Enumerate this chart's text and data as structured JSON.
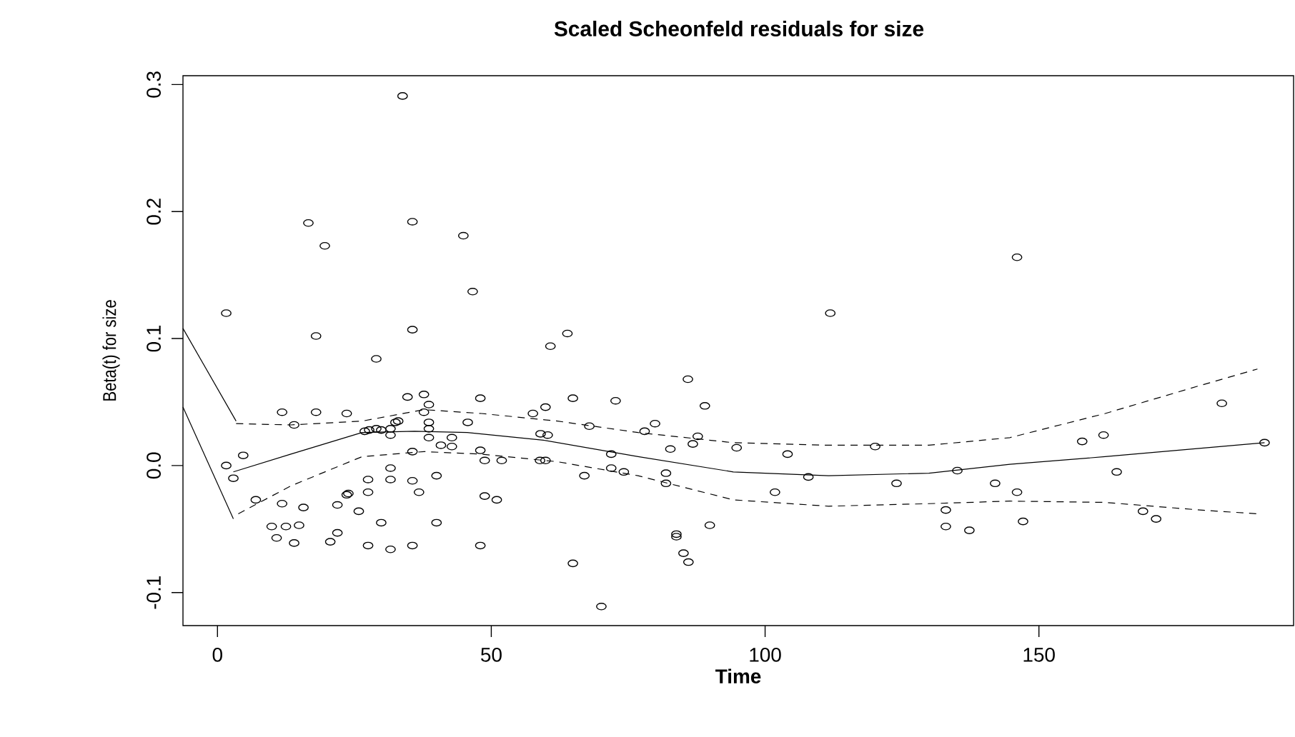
{
  "chart_data": {
    "type": "scatter",
    "title": "Scaled Scheonfeld residuals for size",
    "xlabel": "Time",
    "ylabel": "Beta(t) for size",
    "xlim": [
      -6.3,
      196.5
    ],
    "ylim": [
      -0.126,
      0.307
    ],
    "xticks": [
      0,
      50,
      100,
      150
    ],
    "yticks": [
      -0.1,
      {
        "value": 0,
        "label": "0.0"
      },
      0.1,
      0.2,
      0.3
    ],
    "series": [
      {
        "marker": "circle",
        "color": "#000000",
        "x": [
          1.6,
          1.6,
          2.9,
          4.7,
          7.0,
          11.8,
          18,
          23.6,
          14,
          34.7,
          37.7,
          38.6,
          37.7,
          48,
          33,
          32.5,
          38.6,
          38.6,
          45.7,
          26.9,
          27.7,
          29,
          29.9,
          31.6,
          31.6,
          38.6,
          42.8,
          40.8,
          42.8,
          35.6,
          48,
          48.8,
          51.9,
          57.6,
          59.9,
          59,
          60.3,
          58.9,
          59.9,
          31.6,
          27.5,
          31.6,
          35.6,
          40,
          36.8,
          27.5,
          23.6,
          23.9,
          21.9,
          25.8,
          11.8,
          15.7,
          29.9,
          40,
          48.8,
          51,
          9.9,
          12.5,
          14.9,
          10.8,
          14,
          21.9,
          20.6,
          27.5,
          31.6,
          35.6,
          48,
          33.8,
          16.6,
          19.6,
          35.6,
          44.9,
          46.6,
          18,
          35.6,
          29,
          60.8,
          63.9,
          111.9,
          64.9,
          72.7,
          85.9,
          89,
          67.9,
          79.9,
          78,
          87.7,
          86.8,
          82.7,
          94.8,
          104.1,
          120.1,
          71.9,
          71.9,
          74.2,
          67,
          81.9,
          81.9,
          107.9,
          124,
          101.8,
          89.9,
          83.8,
          83.8,
          85.1,
          86,
          64.9,
          70.1,
          146,
          135.1,
          142,
          146,
          133,
          133,
          137.3,
          147.1,
          157.9,
          161.8,
          164.2,
          169,
          171.4,
          183.4,
          191.2
        ],
        "values": [
          0.12,
          0.0,
          -0.01,
          0.008,
          -0.027,
          0.042,
          0.042,
          0.041,
          0.032,
          0.054,
          0.056,
          0.048,
          0.042,
          0.053,
          0.035,
          0.034,
          0.034,
          0.029,
          0.034,
          0.027,
          0.028,
          0.029,
          0.028,
          0.029,
          0.024,
          0.022,
          0.022,
          0.016,
          0.015,
          0.011,
          0.012,
          0.004,
          0.004,
          0.041,
          0.046,
          0.025,
          0.024,
          0.004,
          0.004,
          -0.002,
          -0.011,
          -0.011,
          -0.012,
          -0.008,
          -0.021,
          -0.021,
          -0.023,
          -0.022,
          -0.031,
          -0.036,
          -0.03,
          -0.033,
          -0.045,
          -0.045,
          -0.024,
          -0.027,
          -0.048,
          -0.048,
          -0.047,
          -0.057,
          -0.061,
          -0.053,
          -0.06,
          -0.063,
          -0.066,
          -0.063,
          -0.063,
          0.291,
          0.191,
          0.173,
          0.192,
          0.181,
          0.137,
          0.102,
          0.107,
          0.084,
          0.094,
          0.104,
          0.12,
          0.053,
          0.051,
          0.068,
          0.047,
          0.031,
          0.033,
          0.027,
          0.023,
          0.017,
          0.013,
          0.014,
          0.009,
          0.015,
          0.009,
          -0.002,
          -0.005,
          -0.008,
          -0.006,
          -0.014,
          -0.009,
          -0.014,
          -0.021,
          -0.047,
          -0.054,
          -0.056,
          -0.069,
          -0.076,
          -0.077,
          -0.111,
          0.164,
          -0.004,
          -0.014,
          -0.021,
          -0.035,
          -0.048,
          -0.051,
          -0.044,
          0.019,
          0.024,
          -0.005,
          -0.036,
          -0.042,
          0.049,
          0.018
        ]
      },
      {
        "type": "line",
        "color": "#000000",
        "line_style": "solid",
        "x": [
          2.9,
          13.4,
          26.4,
          36,
          45.6,
          59.5,
          76.8,
          94.2,
          111.6,
          129.9,
          144.7,
          162.1,
          191.2
        ],
        "values": [
          -0.005,
          0.009,
          0.026,
          0.027,
          0.026,
          0.02,
          0.007,
          -0.005,
          -0.008,
          -0.006,
          0.001,
          0.007,
          0.018
        ]
      },
      {
        "type": "line",
        "color": "#000000",
        "line_style": "dashed",
        "x": [
          3.4,
          13.4,
          26.4,
          37.7,
          48.2,
          62.1,
          76.8,
          94.2,
          111.6,
          129.9,
          144.7,
          162.1,
          179.4,
          189.9
        ],
        "values": [
          0.033,
          0.032,
          0.035,
          0.044,
          0.041,
          0.035,
          0.026,
          0.018,
          0.016,
          0.016,
          0.022,
          0.041,
          0.063,
          0.076
        ]
      },
      {
        "type": "line",
        "color": "#000000",
        "line_style": "dashed",
        "x": [
          3.8,
          13.4,
          26.4,
          37.7,
          48.2,
          62.1,
          76.8,
          94.2,
          111.6,
          129.9,
          144.7,
          162.1,
          179.4,
          189.9
        ],
        "values": [
          -0.038,
          -0.016,
          0.007,
          0.011,
          0.009,
          0.003,
          -0.008,
          -0.027,
          -0.032,
          -0.03,
          -0.028,
          -0.029,
          -0.035,
          -0.038
        ]
      },
      {
        "type": "line",
        "color": "#000000",
        "line_style": "solid",
        "x": [
          -6.3,
          3.4
        ],
        "values": [
          0.108,
          0.035
        ]
      },
      {
        "type": "line",
        "color": "#000000",
        "line_style": "solid",
        "x": [
          -6.3,
          2.9
        ],
        "values": [
          0.046,
          -0.042
        ]
      }
    ]
  }
}
